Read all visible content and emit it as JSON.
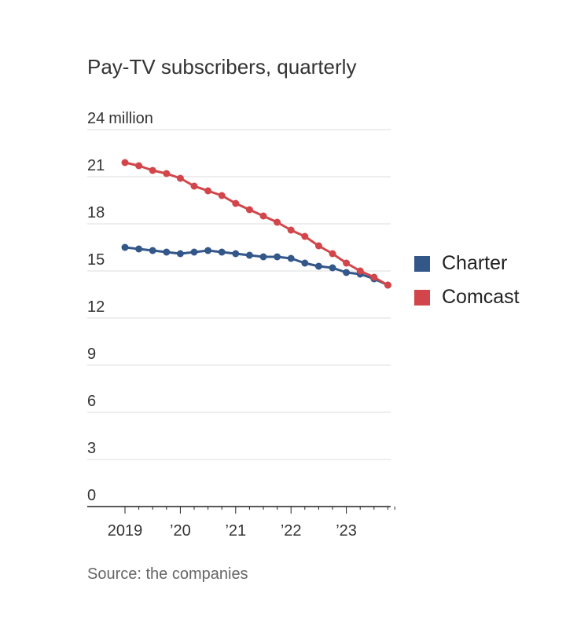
{
  "chart_data": {
    "type": "line",
    "title": "Pay-TV subscribers, quarterly",
    "source": "Source: the companies",
    "y_unit_label": "million",
    "ylim": [
      0,
      24
    ],
    "y_ticks": [
      0,
      3,
      6,
      9,
      12,
      15,
      18,
      21,
      24
    ],
    "y_tick_labels": [
      "0",
      "3",
      "6",
      "9",
      "12",
      "15",
      "18",
      "21",
      "24"
    ],
    "x": [
      "2019 Q1",
      "2019 Q2",
      "2019 Q3",
      "2019 Q4",
      "2020 Q1",
      "2020 Q2",
      "2020 Q3",
      "2020 Q4",
      "2021 Q1",
      "2021 Q2",
      "2021 Q3",
      "2021 Q4",
      "2022 Q1",
      "2022 Q2",
      "2022 Q3",
      "2022 Q4",
      "2023 Q1",
      "2023 Q2",
      "2023 Q3",
      "2023 Q4"
    ],
    "x_tick_labels": [
      "2019",
      "’20",
      "’21",
      "’22",
      "’23"
    ],
    "grid": true,
    "legend_position": "right",
    "series": [
      {
        "name": "Charter",
        "color": "#34578a",
        "values": [
          16.5,
          16.4,
          16.3,
          16.2,
          16.1,
          16.2,
          16.3,
          16.2,
          16.1,
          16.0,
          15.9,
          15.9,
          15.8,
          15.5,
          15.3,
          15.2,
          14.9,
          14.8,
          14.5,
          14.1
        ]
      },
      {
        "name": "Comcast",
        "color": "#d2464b",
        "values": [
          21.9,
          21.7,
          21.4,
          21.2,
          20.9,
          20.4,
          20.1,
          19.8,
          19.3,
          18.9,
          18.5,
          18.1,
          17.6,
          17.2,
          16.6,
          16.1,
          15.5,
          15.0,
          14.6,
          14.1
        ]
      }
    ]
  }
}
